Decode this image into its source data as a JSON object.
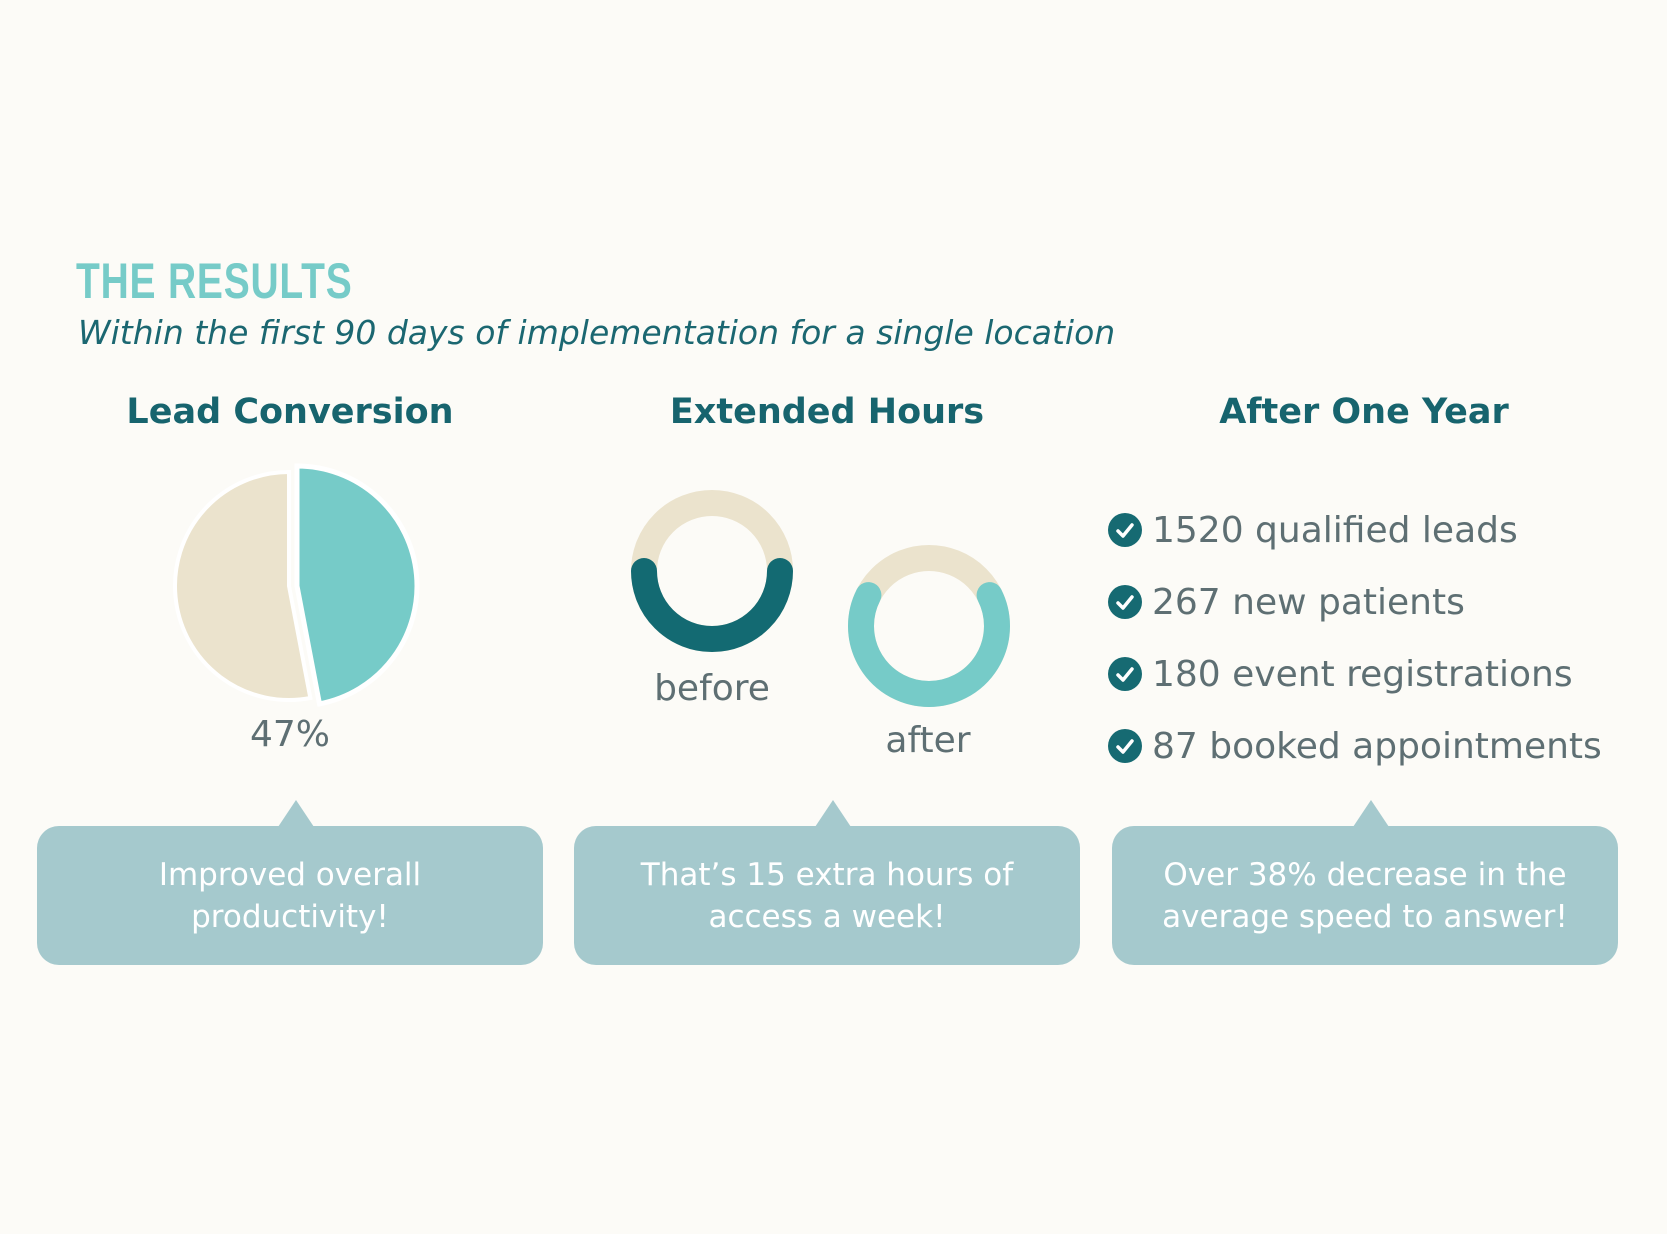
{
  "header": {
    "title": "THE RESULTS",
    "subtitle": "Within the first 90 days of implementation for a single location"
  },
  "lead_conversion": {
    "heading": "Lead Conversion",
    "percent_label": "47%",
    "value_fraction": 0.47,
    "callout": "Improved overall productivity!"
  },
  "extended_hours": {
    "heading": "Extended Hours",
    "before_label": "before",
    "after_label": "after",
    "before_fraction": 0.5,
    "after_fraction": 0.65,
    "callout": "That’s 15 extra hours of access a week!"
  },
  "after_one_year": {
    "heading": "After One Year",
    "items": [
      {
        "label": "1520 qualified leads"
      },
      {
        "label": "267 new patients"
      },
      {
        "label": "180 event registrations"
      },
      {
        "label": "87 booked appointments"
      }
    ],
    "callout": "Over 38% decrease in the average speed to answer!"
  },
  "colors": {
    "accent_teal": "#76cbc8",
    "dark_teal": "#136a72",
    "beige": "#ebe3cd",
    "callout_bg": "#a5c9cd",
    "text_gray": "#5e6f73"
  },
  "icons": {
    "check": "check-circle-icon"
  }
}
